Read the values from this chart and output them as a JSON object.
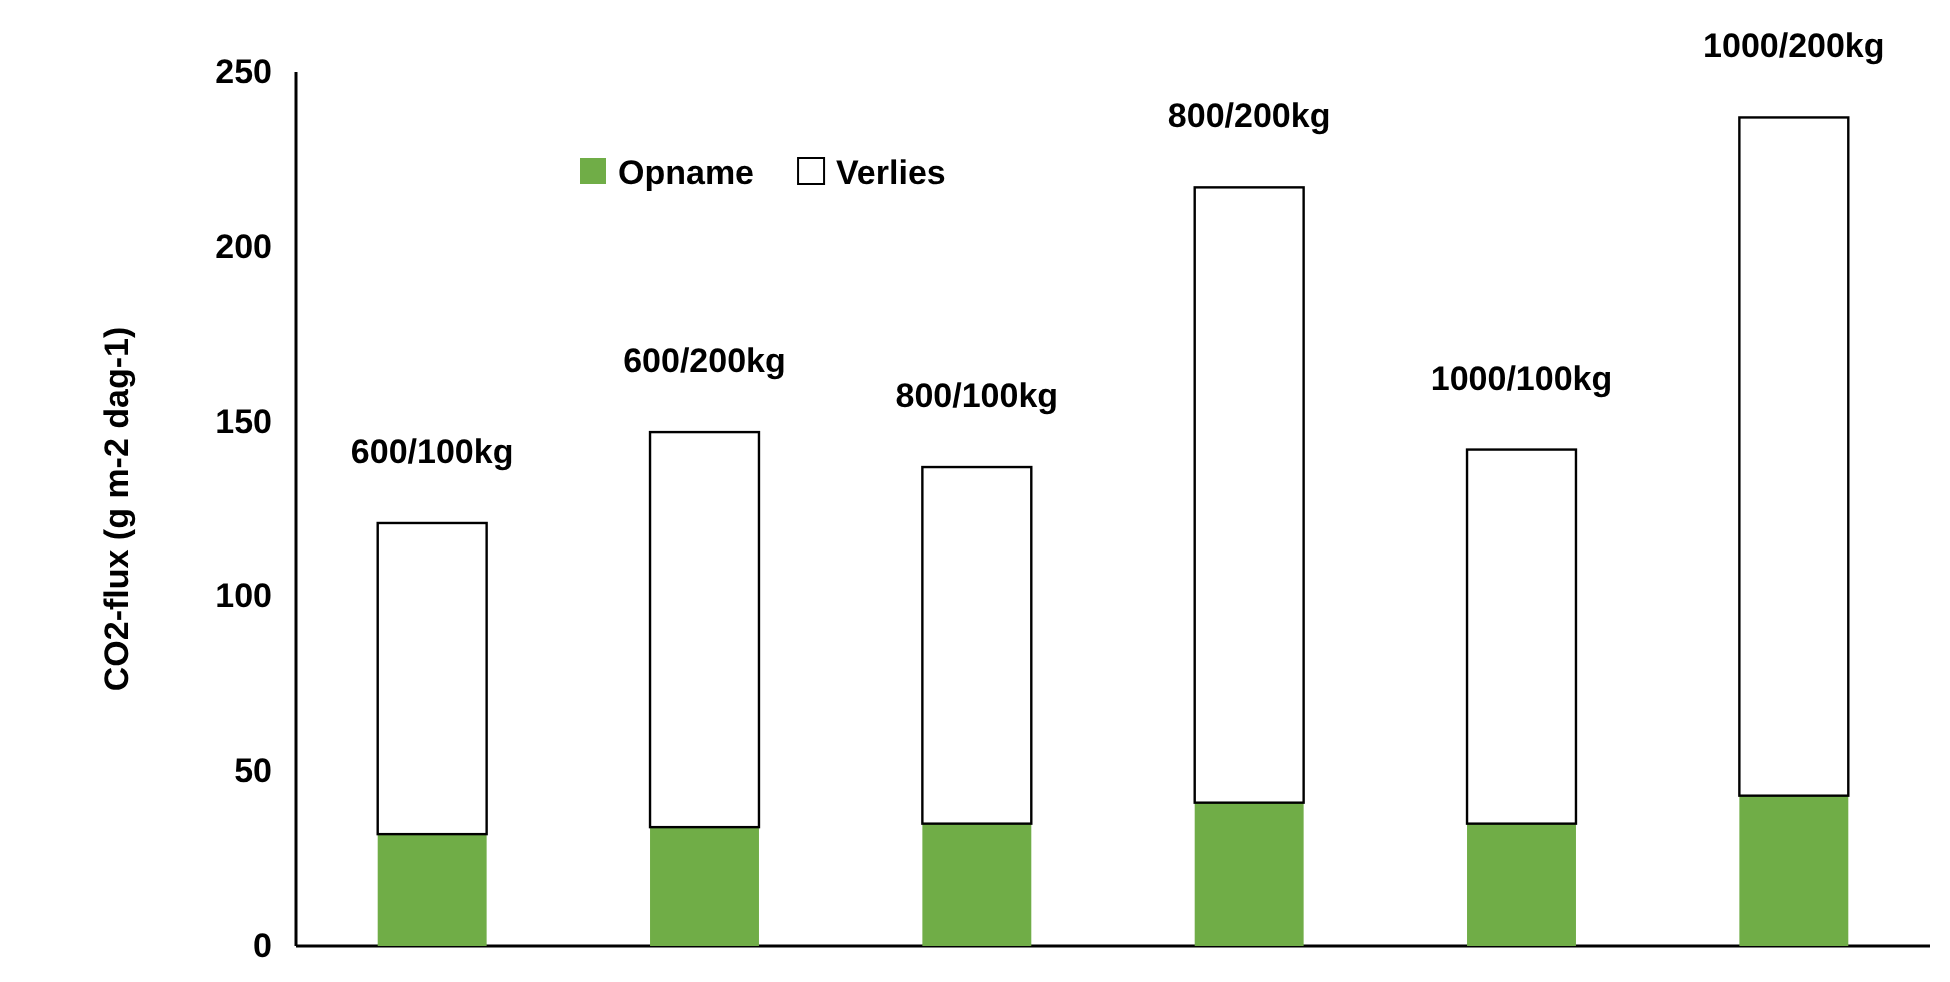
{
  "chart_data": {
    "type": "bar",
    "stacked": true,
    "ylabel": "CO2-flux (g m-2 dag-1)",
    "categories": [
      "600/100kg",
      "600/200kg",
      "800/100kg",
      "800/200kg",
      "1000/100kg",
      "1000/200kg"
    ],
    "series": [
      {
        "name": "Opname",
        "color": "#70ad47",
        "values": [
          32,
          34,
          35,
          41,
          35,
          43
        ]
      },
      {
        "name": "Verlies",
        "color": "#ffffff",
        "values": [
          89,
          113,
          102,
          176,
          107,
          194
        ]
      }
    ],
    "ylim": [
      0,
      250
    ],
    "yticks": [
      0,
      50,
      100,
      150,
      200,
      250
    ],
    "grid": false,
    "legend": "top"
  }
}
